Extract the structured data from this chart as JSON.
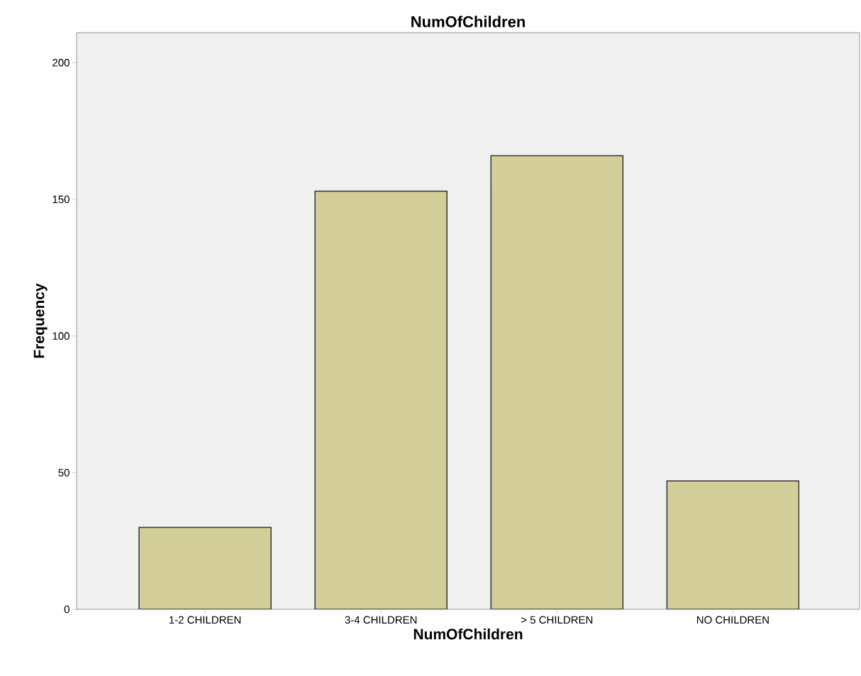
{
  "chart_data": {
    "type": "bar",
    "title": "NumOfChildren",
    "xlabel": "NumOfChildren",
    "ylabel": "Frequency",
    "categories": [
      "1-2 CHILDREN",
      "3-4 CHILDREN",
      "> 5 CHILDREN",
      "NO CHILDREN"
    ],
    "values": [
      30,
      153,
      166,
      47
    ],
    "color": "#d3ce97",
    "ylim": [
      0,
      211
    ],
    "yticks": [
      0,
      50,
      100,
      150,
      200
    ],
    "grid": false
  }
}
